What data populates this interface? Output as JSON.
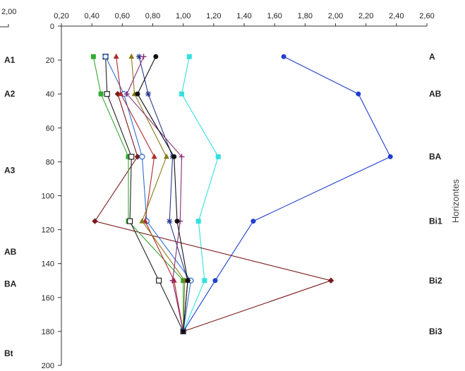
{
  "chart_data": {
    "type": "line",
    "x_axis": {
      "position": "top",
      "range": [
        0.2,
        2.6
      ],
      "tick_labels": [
        "0,20",
        "0,40",
        "0,60",
        "0,80",
        "1,00",
        "1,20",
        "1,40",
        "1,60",
        "1,80",
        "2,00",
        "2,20",
        "2,40",
        "2,60"
      ]
    },
    "y_axis": {
      "range": [
        0,
        200
      ],
      "inverted": true,
      "tick_labels": [
        "0",
        "20",
        "40",
        "60",
        "80",
        "100",
        "120",
        "140",
        "160",
        "180",
        "200"
      ]
    },
    "left_corner_label": "2,00",
    "left_labels": [
      {
        "text": "A1",
        "y": 20
      },
      {
        "text": "A2",
        "y": 40
      },
      {
        "text": "A3",
        "y": 85
      },
      {
        "text": "AB",
        "y": 133
      },
      {
        "text": "BA",
        "y": 152
      },
      {
        "text": "Bt",
        "y": 193
      }
    ],
    "right_labels": [
      {
        "text": "A",
        "y": 18
      },
      {
        "text": "AB",
        "y": 40
      },
      {
        "text": "BA",
        "y": 77
      },
      {
        "text": "Bi1",
        "y": 115
      },
      {
        "text": "Bi2",
        "y": 150
      },
      {
        "text": "Bi3",
        "y": 180
      }
    ],
    "right_axis_title": "Horizontes",
    "grid": false,
    "series": [
      {
        "color": "#1f3fd0",
        "marker": "circle-filled",
        "points": [
          [
            1.66,
            18
          ],
          [
            2.15,
            40
          ],
          [
            2.36,
            77
          ],
          [
            1.46,
            115
          ],
          [
            1.21,
            150
          ],
          [
            1.0,
            180
          ]
        ]
      },
      {
        "color": "#33e0e0",
        "marker": "square-filled",
        "points": [
          [
            1.04,
            18
          ],
          [
            0.99,
            40
          ],
          [
            1.23,
            77
          ],
          [
            1.1,
            115
          ],
          [
            1.14,
            150
          ],
          [
            1.0,
            180
          ]
        ]
      },
      {
        "color": "#7a1a1a",
        "marker": "diamond-filled",
        "points": [
          [
            0.57,
            40
          ],
          [
            0.7,
            77
          ],
          [
            0.42,
            115
          ],
          [
            1.97,
            150
          ],
          [
            1.0,
            180
          ]
        ]
      },
      {
        "color": "#33aa33",
        "marker": "square-filled",
        "points": [
          [
            0.41,
            18
          ],
          [
            0.46,
            40
          ],
          [
            0.64,
            77
          ],
          [
            0.64,
            115
          ],
          [
            1.0,
            150
          ],
          [
            1.0,
            180
          ]
        ]
      },
      {
        "color": "#222222",
        "marker": "square-open",
        "points": [
          [
            0.49,
            18
          ],
          [
            0.5,
            40
          ],
          [
            0.66,
            77
          ],
          [
            0.65,
            115
          ],
          [
            0.84,
            150
          ],
          [
            1.0,
            180
          ]
        ]
      },
      {
        "color": "#2f6fd0",
        "marker": "circle-open",
        "points": [
          [
            0.49,
            18
          ],
          [
            0.61,
            40
          ],
          [
            0.73,
            77
          ],
          [
            0.76,
            115
          ],
          [
            1.05,
            150
          ],
          [
            1.0,
            180
          ]
        ]
      },
      {
        "color": "#b02a2a",
        "marker": "triangle-filled",
        "points": [
          [
            0.56,
            18
          ],
          [
            0.59,
            40
          ],
          [
            0.81,
            77
          ],
          [
            0.75,
            115
          ],
          [
            0.94,
            150
          ],
          [
            1.0,
            180
          ]
        ]
      },
      {
        "color": "#8a7a1a",
        "marker": "triangle-filled",
        "points": [
          [
            0.66,
            18
          ],
          [
            0.68,
            40
          ],
          [
            0.89,
            77
          ],
          [
            0.73,
            115
          ],
          [
            1.01,
            150
          ],
          [
            1.0,
            180
          ]
        ]
      },
      {
        "color": "#2a3a8a",
        "marker": "asterisk",
        "points": [
          [
            0.71,
            18
          ],
          [
            0.77,
            40
          ],
          [
            0.93,
            77
          ],
          [
            0.91,
            115
          ],
          [
            1.03,
            150
          ],
          [
            1.0,
            180
          ]
        ]
      },
      {
        "color": "#8a2a7a",
        "marker": "plus",
        "points": [
          [
            0.74,
            18
          ],
          [
            0.63,
            40
          ],
          [
            0.99,
            77
          ],
          [
            0.98,
            115
          ],
          [
            0.93,
            150
          ],
          [
            1.0,
            180
          ]
        ]
      },
      {
        "color": "#111111",
        "marker": "circle-filled",
        "points": [
          [
            0.82,
            18
          ],
          [
            0.7,
            40
          ],
          [
            0.94,
            77
          ],
          [
            0.96,
            115
          ],
          [
            1.03,
            150
          ],
          [
            1.0,
            180
          ]
        ]
      }
    ]
  }
}
